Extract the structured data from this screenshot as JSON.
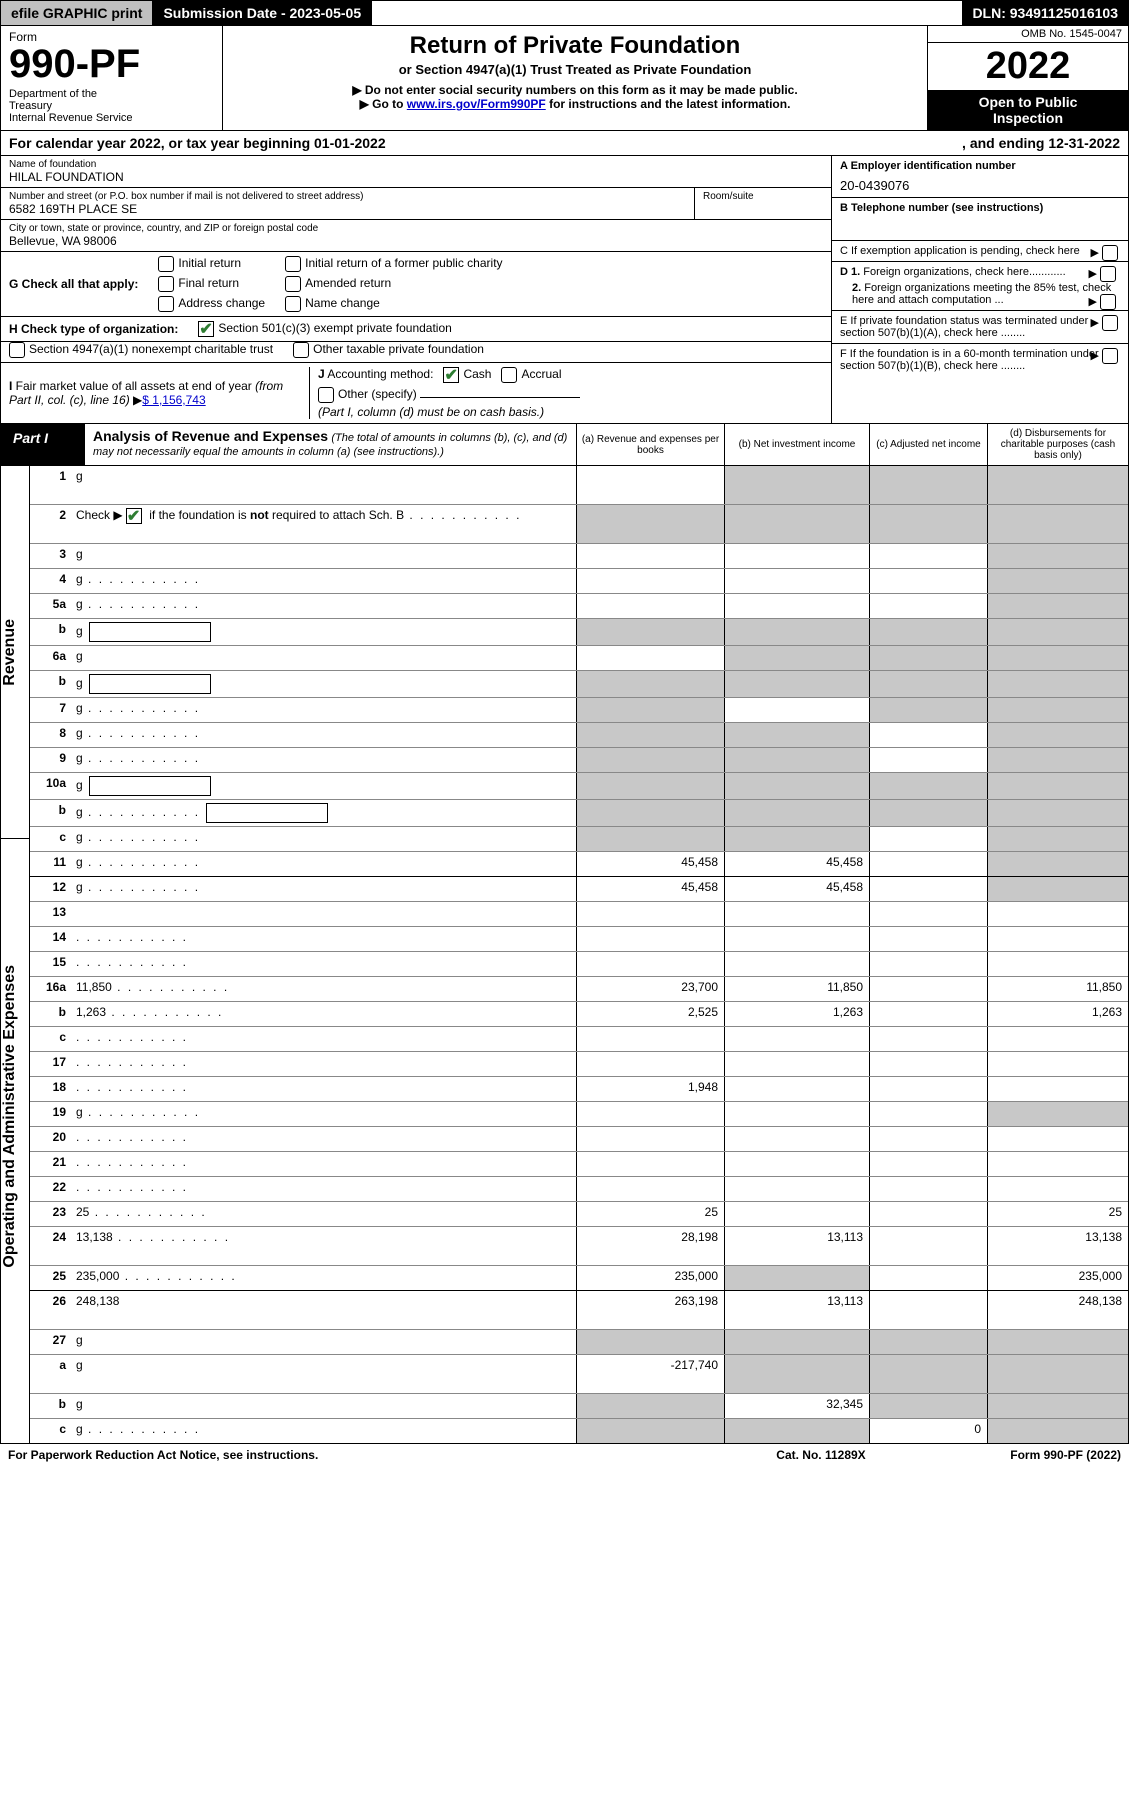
{
  "topbar": {
    "efile": "efile GRAPHIC print",
    "submission": "Submission Date - 2023-05-05",
    "dln": "DLN: 93491125016103"
  },
  "header": {
    "form_word": "Form",
    "form_number": "990-PF",
    "dept": "Department of the Treasury\nInternal Revenue Service",
    "title": "Return of Private Foundation",
    "subtitle": "or Section 4947(a)(1) Trust Treated as Private Foundation",
    "note1": "▶ Do not enter social security numbers on this form as it may be made public.",
    "note2_pre": "▶ Go to ",
    "note2_link": "www.irs.gov/Form990PF",
    "note2_post": " for instructions and the latest information.",
    "omb": "OMB No. 1545-0047",
    "year": "2022",
    "open": "Open to Public Inspection"
  },
  "calyear": {
    "a": "For calendar year 2022, or tax year beginning 01-01-2022",
    "b": ", and ending 12-31-2022"
  },
  "left": {
    "name_lbl": "Name of foundation",
    "name": "HILAL FOUNDATION",
    "addr_lbl": "Number and street (or P.O. box number if mail is not delivered to street address)",
    "addr": "6582 169TH PLACE SE",
    "room_lbl": "Room/suite",
    "city_lbl": "City or town, state or province, country, and ZIP or foreign postal code",
    "city": "Bellevue, WA  98006",
    "G": "G Check all that apply:",
    "G_opts": [
      "Initial return",
      "Final return",
      "Address change",
      "Initial return of a former public charity",
      "Amended return",
      "Name change"
    ],
    "H": "H Check type of organization:",
    "H1": "Section 501(c)(3) exempt private foundation",
    "H2": "Section 4947(a)(1) nonexempt charitable trust",
    "H3": "Other taxable private foundation",
    "I": "I Fair market value of all assets at end of year (from Part II, col. (c), line 16)",
    "I_val": "$  1,156,743",
    "J": "J Accounting method:",
    "J_cash": "Cash",
    "J_acc": "Accrual",
    "J_other": "Other (specify)",
    "J_note": "(Part I, column (d) must be on cash basis.)"
  },
  "right": {
    "A_lbl": "A Employer identification number",
    "A_val": "20-0439076",
    "B_lbl": "B Telephone number (see instructions)",
    "C": "C If exemption application is pending, check here",
    "D1": "D 1. Foreign organizations, check here............",
    "D2": "2. Foreign organizations meeting the 85% test, check here and attach computation ...",
    "E": "E  If private foundation status was terminated under section 507(b)(1)(A), check here ........",
    "F": "F  If the foundation is in a 60-month termination under section 507(b)(1)(B), check here ........"
  },
  "part1": {
    "tag": "Part I",
    "title": "Analysis of Revenue and Expenses",
    "title_sub": " (The total of amounts in columns (b), (c), and (d) may not necessarily equal the amounts in column (a) (see instructions).)",
    "cols": {
      "a": "(a)   Revenue and expenses per books",
      "b": "(b)   Net investment income",
      "c": "(c)   Adjusted net income",
      "d": "(d)  Disbursements for charitable purposes (cash basis only)"
    }
  },
  "sidebar": {
    "revenue": "Revenue",
    "expenses": "Operating and Administrative Expenses"
  },
  "rows": [
    {
      "n": "1",
      "d": "g",
      "a": "",
      "b": "g",
      "c": "g",
      "tall": true
    },
    {
      "n": "2",
      "d": "g",
      "a": "g",
      "b": "g",
      "c": "g",
      "tall": true,
      "dots": true,
      "checked": true
    },
    {
      "n": "3",
      "d": "g",
      "a": "",
      "b": "",
      "c": ""
    },
    {
      "n": "4",
      "d": "g",
      "a": "",
      "b": "",
      "c": "",
      "dots": true
    },
    {
      "n": "5a",
      "d": "g",
      "a": "",
      "b": "",
      "c": "",
      "dots": true
    },
    {
      "n": "b",
      "d": "g",
      "a": "g",
      "b": "g",
      "c": "g",
      "box": true
    },
    {
      "n": "6a",
      "d": "g",
      "a": "",
      "b": "g",
      "c": "g"
    },
    {
      "n": "b",
      "d": "g",
      "a": "g",
      "b": "g",
      "c": "g",
      "box": true
    },
    {
      "n": "7",
      "d": "g",
      "a": "g",
      "b": "",
      "c": "g",
      "dots": true
    },
    {
      "n": "8",
      "d": "g",
      "a": "g",
      "b": "g",
      "c": "",
      "dots": true
    },
    {
      "n": "9",
      "d": "g",
      "a": "g",
      "b": "g",
      "c": "",
      "dots": true
    },
    {
      "n": "10a",
      "d": "g",
      "a": "g",
      "b": "g",
      "c": "g",
      "box": true
    },
    {
      "n": "b",
      "d": "g",
      "a": "g",
      "b": "g",
      "c": "g",
      "box": true,
      "dots": true
    },
    {
      "n": "c",
      "d": "g",
      "a": "g",
      "b": "g",
      "c": "",
      "dots": true
    },
    {
      "n": "11",
      "d": "g",
      "a": "45,458",
      "b": "45,458",
      "c": "",
      "dots": true
    },
    {
      "n": "12",
      "d": "g",
      "a": "45,458",
      "b": "45,458",
      "c": "",
      "dots": true,
      "sep": true
    },
    {
      "n": "13",
      "d": "",
      "a": "",
      "b": "",
      "c": ""
    },
    {
      "n": "14",
      "d": "",
      "a": "",
      "b": "",
      "c": "",
      "dots": true
    },
    {
      "n": "15",
      "d": "",
      "a": "",
      "b": "",
      "c": "",
      "dots": true
    },
    {
      "n": "16a",
      "d": "11,850",
      "a": "23,700",
      "b": "11,850",
      "c": "",
      "dots": true
    },
    {
      "n": "b",
      "d": "1,263",
      "a": "2,525",
      "b": "1,263",
      "c": "",
      "dots": true
    },
    {
      "n": "c",
      "d": "",
      "a": "",
      "b": "",
      "c": "",
      "dots": true
    },
    {
      "n": "17",
      "d": "",
      "a": "",
      "b": "",
      "c": "",
      "dots": true
    },
    {
      "n": "18",
      "d": "",
      "a": "1,948",
      "b": "",
      "c": "",
      "dots": true
    },
    {
      "n": "19",
      "d": "g",
      "a": "",
      "b": "",
      "c": "",
      "dots": true
    },
    {
      "n": "20",
      "d": "",
      "a": "",
      "b": "",
      "c": "",
      "dots": true
    },
    {
      "n": "21",
      "d": "",
      "a": "",
      "b": "",
      "c": "",
      "dots": true
    },
    {
      "n": "22",
      "d": "",
      "a": "",
      "b": "",
      "c": "",
      "dots": true
    },
    {
      "n": "23",
      "d": "25",
      "a": "25",
      "b": "",
      "c": "",
      "dots": true
    },
    {
      "n": "24",
      "d": "13,138",
      "a": "28,198",
      "b": "13,113",
      "c": "",
      "dots": true,
      "tall": true
    },
    {
      "n": "25",
      "d": "235,000",
      "a": "235,000",
      "b": "g",
      "c": "",
      "dots": true
    },
    {
      "n": "26",
      "d": "248,138",
      "a": "263,198",
      "b": "13,113",
      "c": "",
      "tall": true,
      "sep": true
    },
    {
      "n": "27",
      "d": "g",
      "a": "g",
      "b": "g",
      "c": "g"
    },
    {
      "n": "a",
      "d": "g",
      "a": "-217,740",
      "b": "g",
      "c": "g",
      "tall": true
    },
    {
      "n": "b",
      "d": "g",
      "a": "g",
      "b": "32,345",
      "c": "g"
    },
    {
      "n": "c",
      "d": "g",
      "a": "g",
      "b": "g",
      "c": "0",
      "dots": true
    }
  ],
  "footer": {
    "left": "For Paperwork Reduction Act Notice, see instructions.",
    "mid": "Cat. No. 11289X",
    "right": "Form 990-PF (2022)"
  },
  "colors": {
    "grey": "#c8c8c8",
    "link": "#0000cc",
    "check": "#2e7d32"
  }
}
